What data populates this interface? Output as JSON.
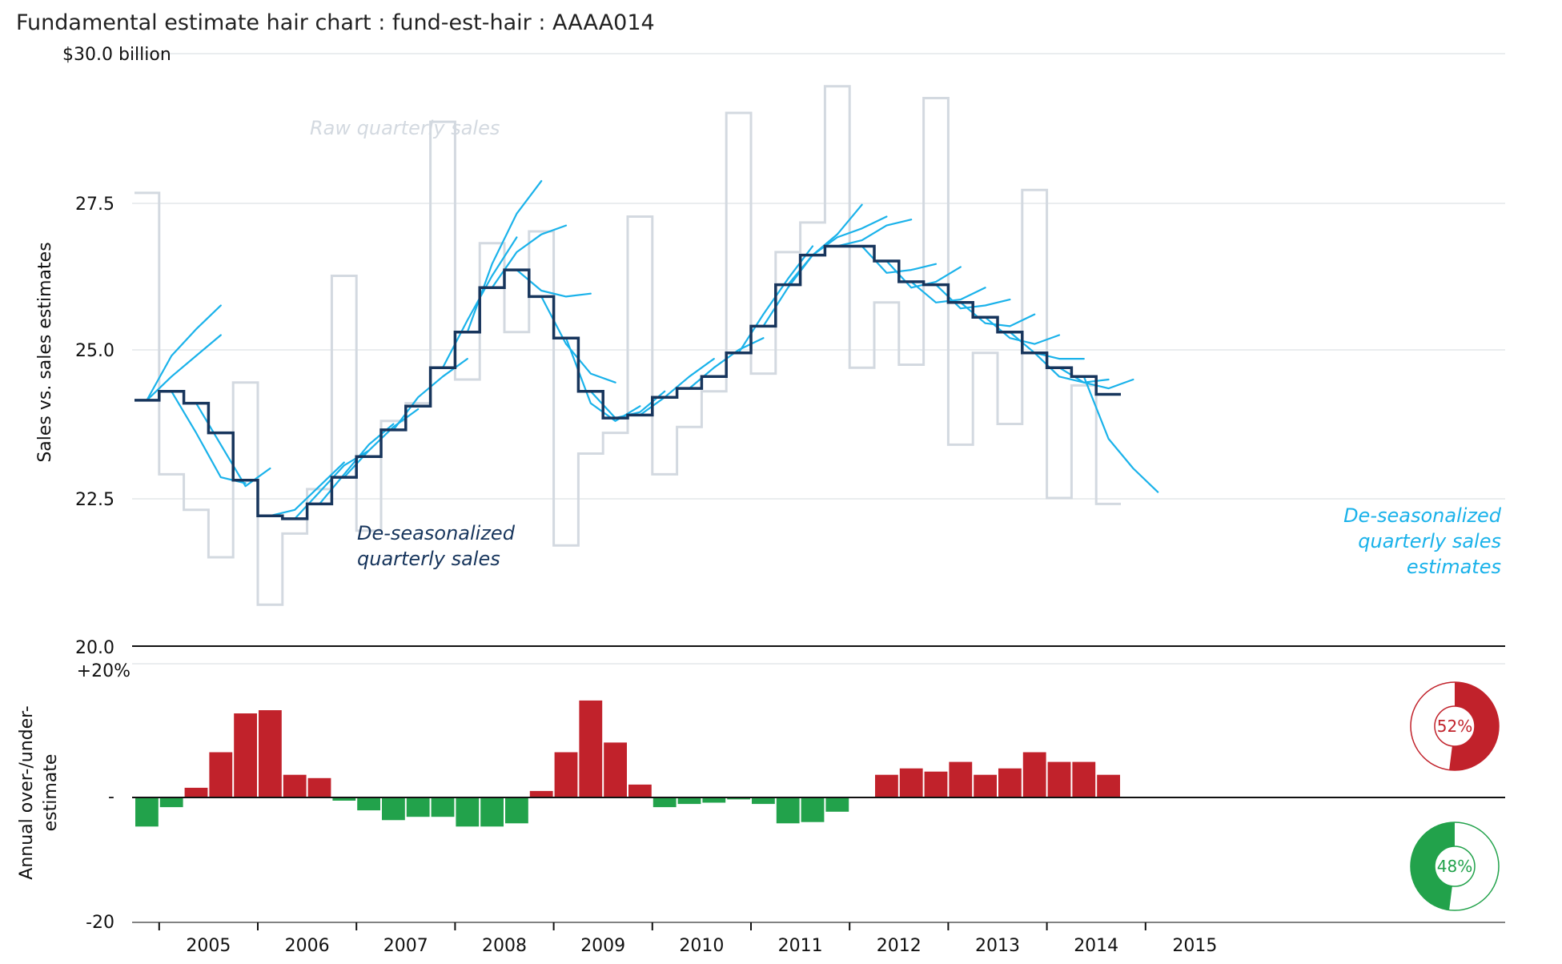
{
  "title": "Fundamental estimate hair chart : fund-est-hair : AAAA014",
  "colors": {
    "raw": "#d3d9e0",
    "deseasonalized": "#17355c",
    "estimates": "#1ab2ea",
    "over": "#c1222b",
    "under": "#22a24b",
    "grid": "#e4e7ea"
  },
  "chart_data": [
    {
      "type": "line",
      "top_label": "$30.0 billion",
      "ylabel": "Sales vs. sales estimates",
      "ylim": [
        20,
        30
      ],
      "yticks": [
        "20.0",
        "22.5",
        "25.0",
        "27.5"
      ],
      "x_labels": [
        "2005",
        "2006",
        "2007",
        "2008",
        "2009",
        "2010",
        "2011",
        "2012",
        "2013",
        "2014",
        "2015"
      ],
      "quarter_start": "2004 Q4",
      "annotations": {
        "raw": "Raw quarterly sales",
        "deseasonalized": [
          "De-seasonalized",
          "quarterly sales"
        ],
        "estimates": [
          "De-seasonalized",
          "quarterly sales",
          "estimates"
        ]
      },
      "series": [
        {
          "key": "raw",
          "values": [
            27.65,
            22.9,
            22.3,
            21.5,
            24.45,
            20.7,
            21.9,
            22.65,
            26.25,
            21.95,
            23.8,
            24.1,
            28.85,
            24.5,
            26.8,
            25.3,
            27.0,
            21.7,
            23.25,
            23.6,
            27.25,
            22.9,
            23.7,
            24.3,
            29.0,
            24.6,
            26.65,
            27.15,
            29.45,
            24.7,
            25.8,
            24.75,
            29.25,
            23.4,
            24.95,
            23.75,
            27.7,
            22.5,
            24.4,
            22.4
          ]
        },
        {
          "key": "deseasonalized",
          "values": [
            24.15,
            24.3,
            24.1,
            23.6,
            22.8,
            22.2,
            22.15,
            22.4,
            22.85,
            23.2,
            23.65,
            24.05,
            24.7,
            25.3,
            26.05,
            26.35,
            25.9,
            25.2,
            24.3,
            23.85,
            23.9,
            24.2,
            24.35,
            24.55,
            24.95,
            25.4,
            26.1,
            26.6,
            26.75,
            26.75,
            26.5,
            26.15,
            26.1,
            25.8,
            25.55,
            25.3,
            24.95,
            24.7,
            24.55,
            24.25
          ]
        }
      ],
      "estimates": [
        {
          "start_quarter": 0,
          "values": [
            24.15,
            24.9,
            25.35,
            25.75
          ]
        },
        {
          "start_quarter": 0,
          "values": [
            24.15,
            24.55,
            24.9,
            25.25
          ]
        },
        {
          "start_quarter": 1,
          "values": [
            24.3,
            23.6,
            22.85,
            22.75
          ]
        },
        {
          "start_quarter": 2,
          "values": [
            24.1,
            23.4,
            22.7,
            23.0
          ]
        },
        {
          "start_quarter": 5,
          "values": [
            22.2,
            22.3,
            22.7,
            23.1
          ]
        },
        {
          "start_quarter": 6,
          "values": [
            22.15,
            22.6,
            23.05,
            23.3
          ]
        },
        {
          "start_quarter": 7,
          "values": [
            22.4,
            22.9,
            23.4,
            23.75
          ]
        },
        {
          "start_quarter": 8,
          "values": [
            22.85,
            23.3,
            23.7,
            24.0
          ]
        },
        {
          "start_quarter": 10,
          "values": [
            23.65,
            24.2,
            24.55,
            24.85
          ]
        },
        {
          "start_quarter": 12,
          "values": [
            24.7,
            25.5,
            26.25,
            26.9
          ]
        },
        {
          "start_quarter": 13,
          "values": [
            25.3,
            26.45,
            27.3,
            27.85
          ]
        },
        {
          "start_quarter": 14,
          "values": [
            26.05,
            26.65,
            26.95,
            27.1
          ]
        },
        {
          "start_quarter": 15,
          "values": [
            26.35,
            26.0,
            25.9,
            25.95
          ]
        },
        {
          "start_quarter": 16,
          "values": [
            25.9,
            25.1,
            24.6,
            24.45
          ]
        },
        {
          "start_quarter": 17,
          "values": [
            25.2,
            24.1,
            23.8,
            24.05
          ]
        },
        {
          "start_quarter": 18,
          "values": [
            24.3,
            23.85,
            23.95,
            24.3
          ]
        },
        {
          "start_quarter": 20,
          "values": [
            23.9,
            24.2,
            24.55,
            24.85
          ]
        },
        {
          "start_quarter": 22,
          "values": [
            24.35,
            24.7,
            25.0,
            25.2
          ]
        },
        {
          "start_quarter": 24,
          "values": [
            24.95,
            25.6,
            26.2,
            26.75
          ]
        },
        {
          "start_quarter": 25,
          "values": [
            25.4,
            26.05,
            26.6,
            26.95
          ]
        },
        {
          "start_quarter": 26,
          "values": [
            26.1,
            26.6,
            26.95,
            27.45
          ]
        },
        {
          "start_quarter": 27,
          "values": [
            26.6,
            26.9,
            27.05,
            27.25
          ]
        },
        {
          "start_quarter": 28,
          "values": [
            26.75,
            26.85,
            27.1,
            27.2
          ]
        },
        {
          "start_quarter": 29,
          "values": [
            26.75,
            26.3,
            26.35,
            26.45
          ]
        },
        {
          "start_quarter": 30,
          "values": [
            26.5,
            26.05,
            26.15,
            26.4
          ]
        },
        {
          "start_quarter": 31,
          "values": [
            26.15,
            25.8,
            25.85,
            26.05
          ]
        },
        {
          "start_quarter": 32,
          "values": [
            26.1,
            25.7,
            25.75,
            25.85
          ]
        },
        {
          "start_quarter": 33,
          "values": [
            25.8,
            25.45,
            25.4,
            25.6
          ]
        },
        {
          "start_quarter": 34,
          "values": [
            25.55,
            25.2,
            25.1,
            25.25
          ]
        },
        {
          "start_quarter": 35,
          "values": [
            25.3,
            24.95,
            24.85,
            24.85
          ]
        },
        {
          "start_quarter": 36,
          "values": [
            24.95,
            24.55,
            24.45,
            24.5
          ]
        },
        {
          "start_quarter": 37,
          "values": [
            24.7,
            24.45,
            24.35,
            24.5
          ]
        },
        {
          "start_quarter": 38,
          "values": [
            24.55,
            23.5,
            23.0,
            22.6
          ]
        }
      ]
    },
    {
      "type": "bar",
      "ylabel": "Annual over-/under-estimate",
      "ylim": [
        -20,
        20
      ],
      "yticks": [
        "+20%",
        "-",
        "-20"
      ],
      "values": [
        -4.5,
        -1.5,
        1.5,
        7,
        13,
        13.5,
        3.5,
        3,
        -0.5,
        -2,
        -3.5,
        -3,
        -3,
        -4.5,
        -4.5,
        -4,
        1,
        7,
        15,
        8.5,
        2,
        -1.5,
        -1,
        -0.8,
        -0.3,
        -1,
        -4,
        -3.8,
        -2.2,
        0,
        3.5,
        4.5,
        4,
        5.5,
        3.5,
        4.5,
        7,
        5.5,
        5.5,
        3.5
      ],
      "share_over": "52%",
      "share_under": "48%"
    }
  ]
}
